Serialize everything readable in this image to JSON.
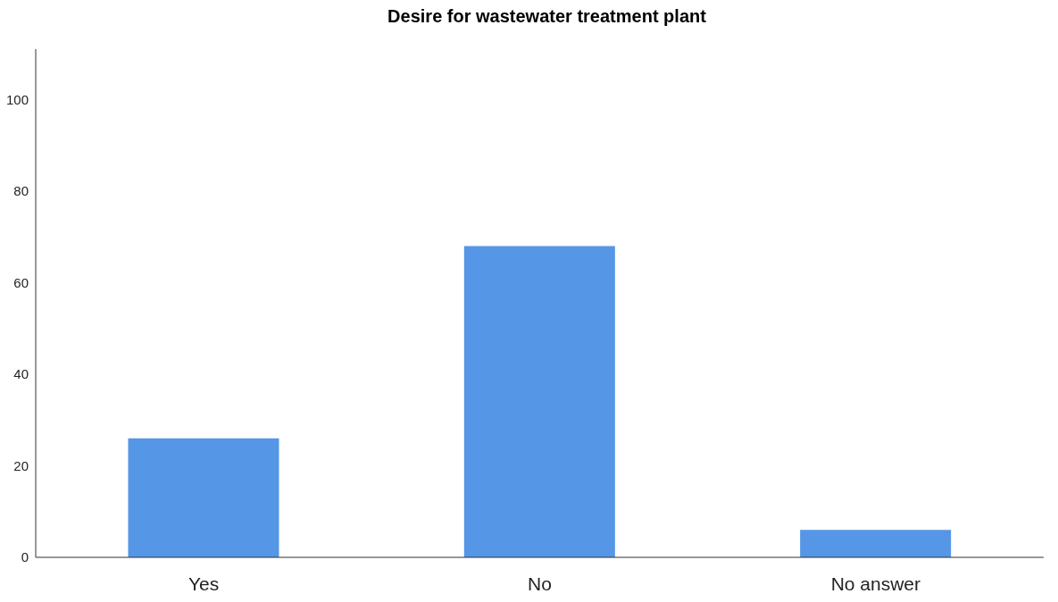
{
  "chart_data": {
    "type": "bar",
    "title": "Desire for wastewater treatment plant",
    "categories": [
      "Yes",
      "No",
      "No answer"
    ],
    "values": [
      26,
      68,
      6
    ],
    "color": "#5596e6",
    "ylim": [
      0,
      111
    ],
    "yticks": [
      0,
      20,
      40,
      60,
      80,
      100
    ],
    "grid": false
  }
}
